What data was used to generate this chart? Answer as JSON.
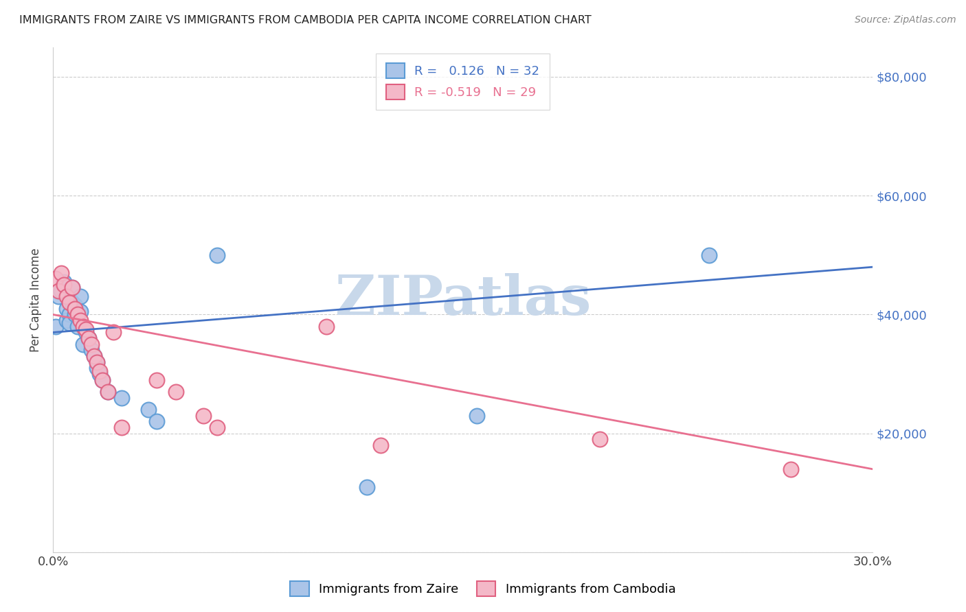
{
  "title": "IMMIGRANTS FROM ZAIRE VS IMMIGRANTS FROM CAMBODIA PER CAPITA INCOME CORRELATION CHART",
  "source": "Source: ZipAtlas.com",
  "ylabel": "Per Capita Income",
  "yticks": [
    0,
    20000,
    40000,
    60000,
    80000
  ],
  "ytick_labels": [
    "",
    "$20,000",
    "$40,000",
    "$60,000",
    "$80,000"
  ],
  "xmin": 0.0,
  "xmax": 0.3,
  "ymin": 0,
  "ymax": 85000,
  "zaire_color": "#aac4e8",
  "zaire_edge_color": "#5b9bd5",
  "cambodia_color": "#f4b8c8",
  "cambodia_edge_color": "#e06080",
  "zaire_line_color": "#4472c4",
  "cambodia_line_color": "#e87090",
  "zaire_R": 0.126,
  "zaire_N": 32,
  "cambodia_R": -0.519,
  "cambodia_N": 29,
  "legend_label_zaire": "Immigrants from Zaire",
  "legend_label_cambodia": "Immigrants from Cambodia",
  "watermark": "ZIPatlas",
  "watermark_color": "#c8d8ea",
  "zaire_x": [
    0.001,
    0.002,
    0.003,
    0.004,
    0.005,
    0.005,
    0.006,
    0.006,
    0.007,
    0.007,
    0.008,
    0.008,
    0.009,
    0.01,
    0.01,
    0.011,
    0.012,
    0.013,
    0.014,
    0.015,
    0.016,
    0.016,
    0.017,
    0.018,
    0.02,
    0.025,
    0.035,
    0.038,
    0.06,
    0.115,
    0.155,
    0.24
  ],
  "zaire_y": [
    38000,
    43000,
    44000,
    45500,
    41000,
    39000,
    40000,
    38500,
    44500,
    42000,
    41500,
    40000,
    38000,
    43000,
    40500,
    35000,
    37000,
    36000,
    34000,
    33000,
    32000,
    31000,
    30000,
    29000,
    27000,
    26000,
    24000,
    22000,
    50000,
    11000,
    23000,
    50000
  ],
  "cambodia_x": [
    0.001,
    0.002,
    0.003,
    0.004,
    0.005,
    0.006,
    0.007,
    0.008,
    0.009,
    0.01,
    0.011,
    0.012,
    0.013,
    0.014,
    0.015,
    0.016,
    0.017,
    0.018,
    0.02,
    0.022,
    0.025,
    0.038,
    0.045,
    0.055,
    0.06,
    0.1,
    0.12,
    0.2,
    0.27
  ],
  "cambodia_y": [
    46000,
    44000,
    47000,
    45000,
    43000,
    42000,
    44500,
    41000,
    40000,
    39000,
    38000,
    37500,
    36000,
    35000,
    33000,
    32000,
    30500,
    29000,
    27000,
    37000,
    21000,
    29000,
    27000,
    23000,
    21000,
    38000,
    18000,
    19000,
    14000
  ],
  "zaire_line_x": [
    0.0,
    0.3
  ],
  "zaire_line_y": [
    37000,
    48000
  ],
  "cambodia_line_x": [
    0.0,
    0.3
  ],
  "cambodia_line_y": [
    40000,
    14000
  ]
}
